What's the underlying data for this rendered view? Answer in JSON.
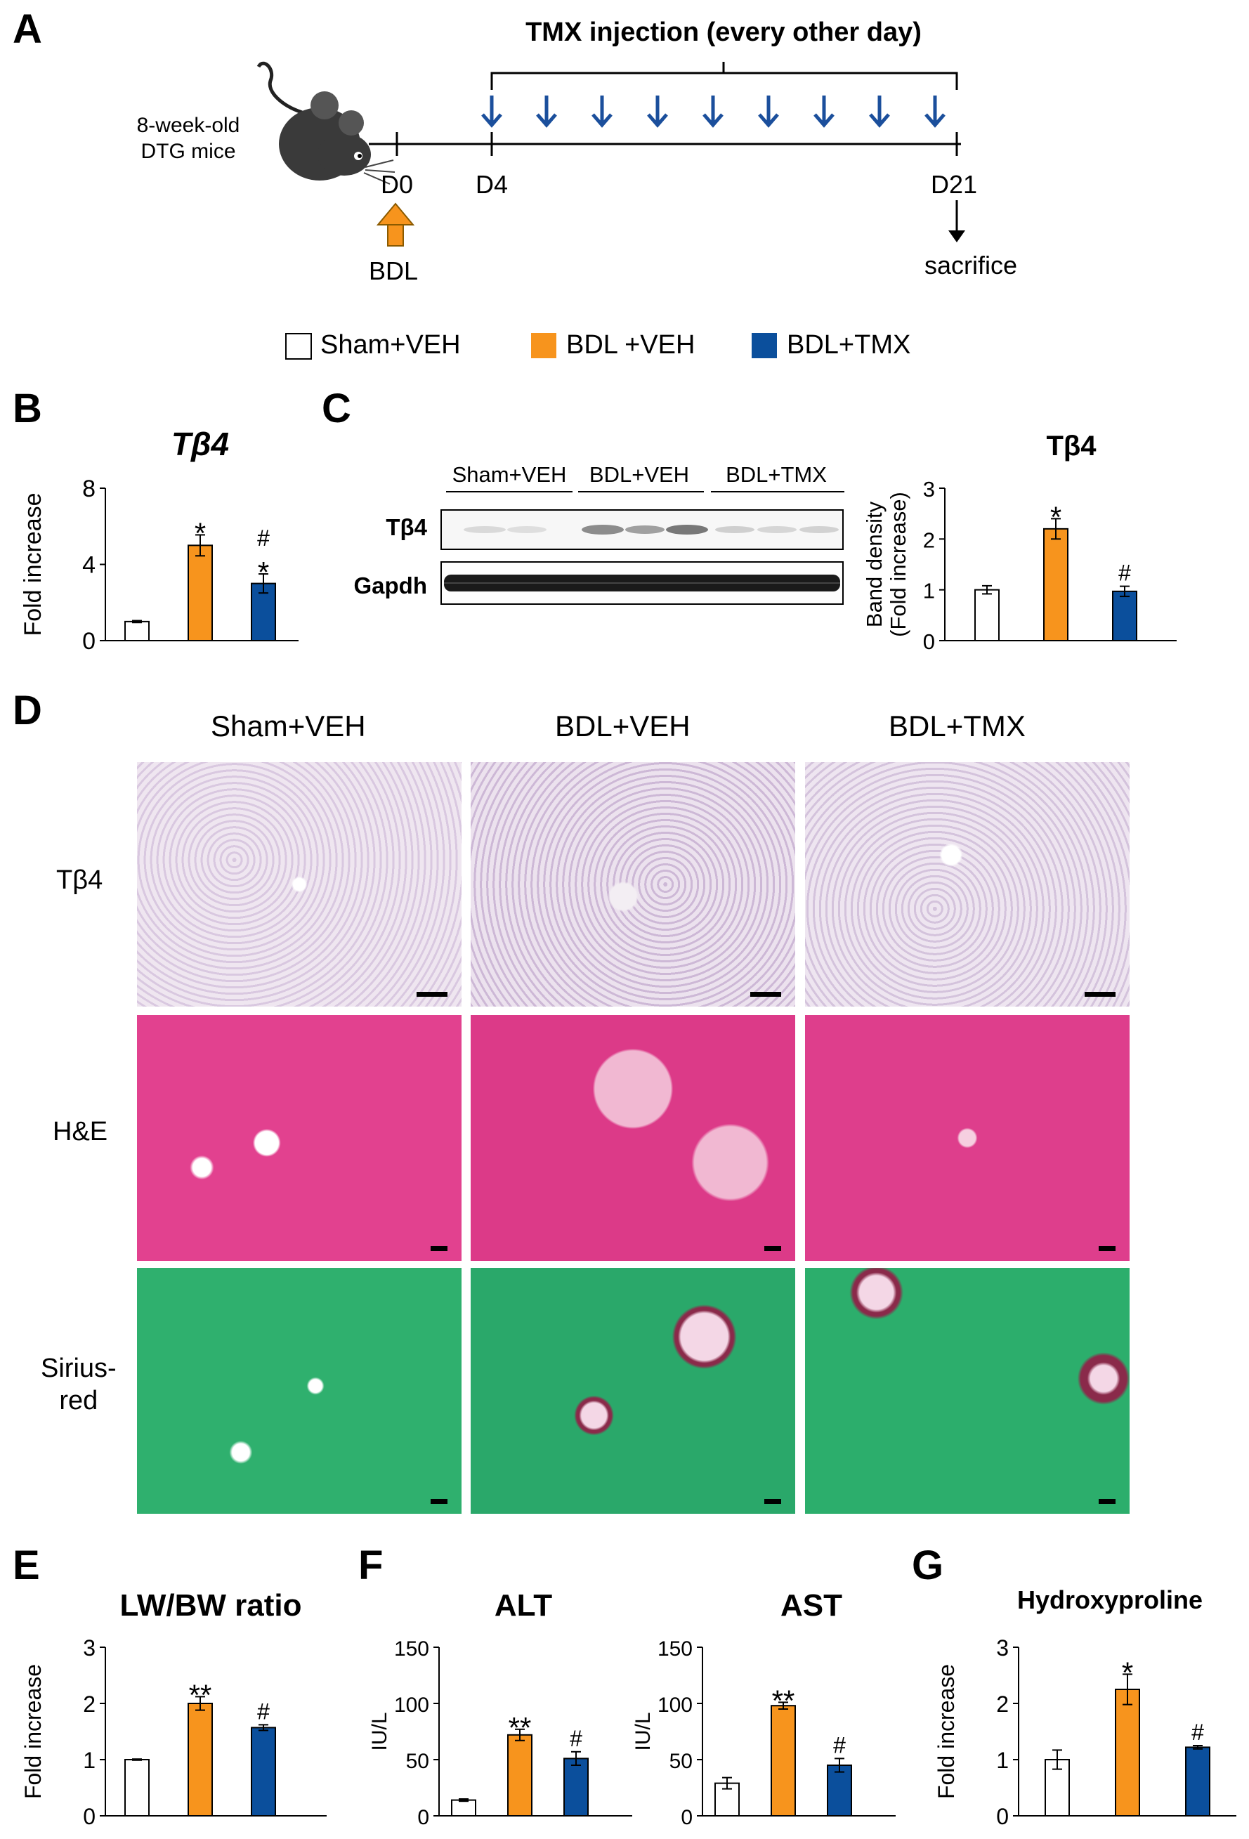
{
  "panels": {
    "a": "A",
    "b": "B",
    "c": "C",
    "d": "D",
    "e": "E",
    "f": "F",
    "g": "G"
  },
  "timeline": {
    "mouse_label_line1": "8-week-old",
    "mouse_label_line2": "DTG mice",
    "title": "TMX injection (every other day)",
    "day0": "D0",
    "day4": "D4",
    "day21": "D21",
    "bdl": "BDL",
    "sacrifice": "sacrifice"
  },
  "legend": {
    "items": [
      {
        "label": "Sham+VEH",
        "color": "#ffffff"
      },
      {
        "label": "BDL +VEH",
        "color": "#f7941d"
      },
      {
        "label": "BDL+TMX",
        "color": "#0b4f9c"
      }
    ]
  },
  "colors": {
    "sham": "#ffffff",
    "bdl_veh": "#f7941d",
    "bdl_tmx": "#0b4f9c"
  },
  "blot": {
    "groups": [
      "Sham+VEH",
      "BDL+VEH",
      "BDL+TMX"
    ],
    "rows": [
      "Tβ4",
      "Gapdh"
    ]
  },
  "histology": {
    "columns": [
      "Sham+VEH",
      "BDL+VEH",
      "BDL+TMX"
    ],
    "rows": [
      "Tβ4",
      "H&E",
      "Sirius-\nred"
    ]
  },
  "chart_data": [
    {
      "id": "B",
      "type": "bar",
      "title": "Tβ4",
      "title_italic": true,
      "ylabel": "Fold increase",
      "ylim": [
        0,
        8
      ],
      "yticks": [
        0,
        4,
        8
      ],
      "categories": [
        "Sham+VEH",
        "BDL+VEH",
        "BDL+TMX"
      ],
      "values": [
        1.0,
        5.0,
        3.0
      ],
      "errors": [
        0.05,
        0.55,
        0.5
      ],
      "annotations": [
        "",
        "*",
        "#\n*"
      ]
    },
    {
      "id": "C",
      "type": "bar",
      "title": "Tβ4",
      "ylabel": "Band density\n(Fold increase)",
      "ylim": [
        0,
        3
      ],
      "yticks": [
        0,
        1,
        2,
        3
      ],
      "categories": [
        "Sham+VEH",
        "BDL+VEH",
        "BDL+TMX"
      ],
      "values": [
        1.0,
        2.2,
        0.97
      ],
      "errors": [
        0.08,
        0.2,
        0.1
      ],
      "annotations": [
        "",
        "*",
        "#"
      ]
    },
    {
      "id": "E",
      "type": "bar",
      "title": "LW/BW ratio",
      "ylabel": "Fold increase",
      "ylim": [
        0,
        3
      ],
      "yticks": [
        0,
        1,
        2,
        3
      ],
      "categories": [
        "Sham+VEH",
        "BDL+VEH",
        "BDL+TMX"
      ],
      "values": [
        1.0,
        2.0,
        1.57
      ],
      "errors": [
        0.01,
        0.12,
        0.05
      ],
      "annotations": [
        "",
        "**",
        "#"
      ]
    },
    {
      "id": "F1",
      "type": "bar",
      "title": "ALT",
      "ylabel": "IU/L",
      "ylim": [
        0,
        150
      ],
      "yticks": [
        0,
        50,
        100,
        150
      ],
      "categories": [
        "Sham+VEH",
        "BDL+VEH",
        "BDL+TMX"
      ],
      "values": [
        14,
        72,
        51
      ],
      "errors": [
        1,
        5,
        6
      ],
      "annotations": [
        "",
        "**",
        "#"
      ]
    },
    {
      "id": "F2",
      "type": "bar",
      "title": "AST",
      "ylabel": "IU/L",
      "ylim": [
        0,
        150
      ],
      "yticks": [
        0,
        50,
        100,
        150
      ],
      "categories": [
        "Sham+VEH",
        "BDL+VEH",
        "BDL+TMX"
      ],
      "values": [
        29,
        98,
        45
      ],
      "errors": [
        5,
        3,
        6
      ],
      "annotations": [
        "",
        "**",
        "#"
      ]
    },
    {
      "id": "G",
      "type": "bar",
      "title": "Hydroxyproline",
      "ylabel": "Fold increase",
      "ylim": [
        0,
        3
      ],
      "yticks": [
        0,
        1,
        2,
        3
      ],
      "categories": [
        "Sham+VEH",
        "BDL+VEH",
        "BDL+TMX"
      ],
      "values": [
        1.0,
        2.25,
        1.22
      ],
      "errors": [
        0.17,
        0.27,
        0.03
      ],
      "annotations": [
        "",
        "*",
        "#"
      ]
    }
  ]
}
